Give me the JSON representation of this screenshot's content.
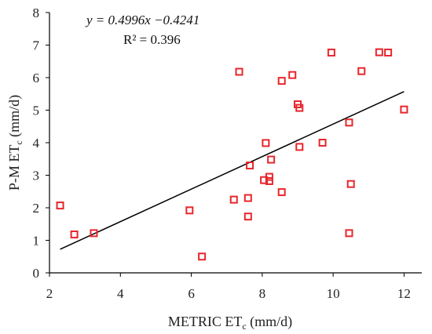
{
  "chart_data": {
    "type": "scatter",
    "xlabel": "METRIC ET",
    "xlabel_sub": "c",
    "xlabel_unit": " (mm/d)",
    "ylabel": "P-M ET",
    "ylabel_sub": "c",
    "ylabel_unit": " (mm/d)",
    "xlim": [
      2,
      12.5
    ],
    "ylim": [
      0,
      8
    ],
    "xticks": [
      2,
      4,
      6,
      8,
      10,
      12
    ],
    "yticks": [
      0,
      1,
      2,
      3,
      4,
      5,
      6,
      7,
      8
    ],
    "grid": false,
    "marker_color": "#e8262c",
    "line_color": "#000000",
    "equation": "y = 0.4996x −0.4241",
    "r2": "R² = 0.396",
    "trendline": {
      "slope": 0.4996,
      "intercept": -0.4241,
      "x_range": [
        2.3,
        12.0
      ]
    },
    "points": [
      {
        "x": 2.3,
        "y": 2.07
      },
      {
        "x": 2.7,
        "y": 1.18
      },
      {
        "x": 3.25,
        "y": 1.22
      },
      {
        "x": 5.95,
        "y": 1.92
      },
      {
        "x": 6.3,
        "y": 0.5
      },
      {
        "x": 7.2,
        "y": 2.25
      },
      {
        "x": 7.35,
        "y": 6.18
      },
      {
        "x": 7.6,
        "y": 2.3
      },
      {
        "x": 7.6,
        "y": 1.73
      },
      {
        "x": 7.65,
        "y": 3.3
      },
      {
        "x": 8.05,
        "y": 2.85
      },
      {
        "x": 8.1,
        "y": 3.99
      },
      {
        "x": 8.2,
        "y": 2.95
      },
      {
        "x": 8.2,
        "y": 2.82
      },
      {
        "x": 8.25,
        "y": 3.48
      },
      {
        "x": 8.55,
        "y": 2.48
      },
      {
        "x": 8.55,
        "y": 5.9
      },
      {
        "x": 8.85,
        "y": 6.08
      },
      {
        "x": 9.0,
        "y": 5.18
      },
      {
        "x": 9.05,
        "y": 3.87
      },
      {
        "x": 9.05,
        "y": 5.07
      },
      {
        "x": 9.7,
        "y": 4.0
      },
      {
        "x": 9.95,
        "y": 6.77
      },
      {
        "x": 10.45,
        "y": 4.62
      },
      {
        "x": 10.45,
        "y": 1.22
      },
      {
        "x": 10.5,
        "y": 2.73
      },
      {
        "x": 10.8,
        "y": 6.2
      },
      {
        "x": 11.3,
        "y": 6.78
      },
      {
        "x": 11.55,
        "y": 6.77
      },
      {
        "x": 12.0,
        "y": 5.02
      }
    ]
  }
}
